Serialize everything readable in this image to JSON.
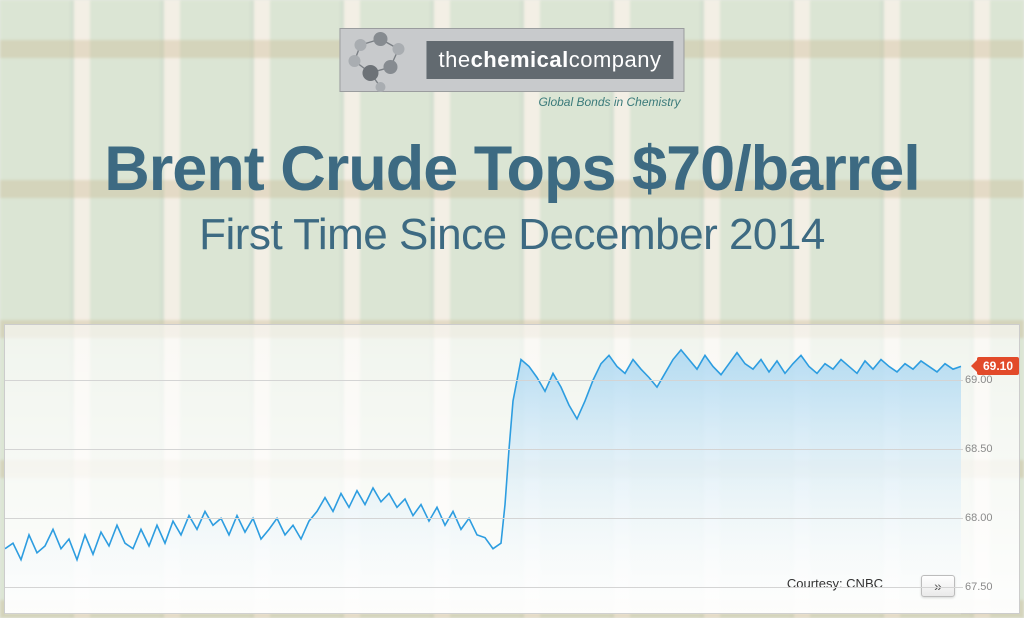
{
  "logo": {
    "prefix": "the",
    "bold": "chemical",
    "suffix": "company",
    "tagline": "Global Bonds in Chemistry",
    "bar_bg": "#c8cacc",
    "text_bg": "#626a70",
    "text_color": "#ffffff",
    "tagline_color": "#3a7a7a"
  },
  "headline": {
    "main": "Brent Crude Tops $70/barrel",
    "sub": "First Time Since December 2014",
    "color": "#3d6a82",
    "main_fontsize": 63,
    "main_weight": 800,
    "sub_fontsize": 44,
    "sub_weight": 400
  },
  "chart": {
    "type": "area-line",
    "line_color": "#2d9de0",
    "fill_top": "#a8d6f2",
    "fill_bottom": "#ffffff",
    "grid_color": "#d4d4d4",
    "axis_text_color": "#8a8a8a",
    "background": "#ffffff",
    "ylim": [
      67.3,
      69.4
    ],
    "yticks": [
      67.5,
      68.0,
      68.5,
      69.0
    ],
    "current_price": "69.10",
    "badge_color": "#e24a2a",
    "courtesy": "Courtesy: CNBC",
    "more_glyph": "»",
    "points": [
      [
        0,
        67.78
      ],
      [
        8,
        67.82
      ],
      [
        16,
        67.7
      ],
      [
        24,
        67.88
      ],
      [
        32,
        67.75
      ],
      [
        40,
        67.8
      ],
      [
        48,
        67.92
      ],
      [
        56,
        67.78
      ],
      [
        64,
        67.85
      ],
      [
        72,
        67.7
      ],
      [
        80,
        67.88
      ],
      [
        88,
        67.74
      ],
      [
        96,
        67.9
      ],
      [
        104,
        67.8
      ],
      [
        112,
        67.95
      ],
      [
        120,
        67.82
      ],
      [
        128,
        67.78
      ],
      [
        136,
        67.92
      ],
      [
        144,
        67.8
      ],
      [
        152,
        67.95
      ],
      [
        160,
        67.82
      ],
      [
        168,
        67.98
      ],
      [
        176,
        67.88
      ],
      [
        184,
        68.02
      ],
      [
        192,
        67.92
      ],
      [
        200,
        68.05
      ],
      [
        208,
        67.95
      ],
      [
        216,
        68.0
      ],
      [
        224,
        67.88
      ],
      [
        232,
        68.02
      ],
      [
        240,
        67.9
      ],
      [
        248,
        68.0
      ],
      [
        256,
        67.85
      ],
      [
        264,
        67.92
      ],
      [
        272,
        68.0
      ],
      [
        280,
        67.88
      ],
      [
        288,
        67.95
      ],
      [
        296,
        67.85
      ],
      [
        304,
        67.98
      ],
      [
        312,
        68.05
      ],
      [
        320,
        68.15
      ],
      [
        328,
        68.05
      ],
      [
        336,
        68.18
      ],
      [
        344,
        68.08
      ],
      [
        352,
        68.2
      ],
      [
        360,
        68.1
      ],
      [
        368,
        68.22
      ],
      [
        376,
        68.12
      ],
      [
        384,
        68.18
      ],
      [
        392,
        68.08
      ],
      [
        400,
        68.14
      ],
      [
        408,
        68.02
      ],
      [
        416,
        68.1
      ],
      [
        424,
        67.98
      ],
      [
        432,
        68.08
      ],
      [
        440,
        67.95
      ],
      [
        448,
        68.05
      ],
      [
        456,
        67.92
      ],
      [
        464,
        68.0
      ],
      [
        472,
        67.88
      ],
      [
        480,
        67.86
      ],
      [
        488,
        67.78
      ],
      [
        496,
        67.82
      ],
      [
        500,
        68.1
      ],
      [
        504,
        68.5
      ],
      [
        508,
        68.85
      ],
      [
        512,
        69.0
      ],
      [
        516,
        69.15
      ],
      [
        524,
        69.1
      ],
      [
        532,
        69.02
      ],
      [
        540,
        68.92
      ],
      [
        548,
        69.05
      ],
      [
        556,
        68.95
      ],
      [
        564,
        68.82
      ],
      [
        572,
        68.72
      ],
      [
        580,
        68.85
      ],
      [
        588,
        69.0
      ],
      [
        596,
        69.12
      ],
      [
        604,
        69.18
      ],
      [
        612,
        69.1
      ],
      [
        620,
        69.05
      ],
      [
        628,
        69.15
      ],
      [
        636,
        69.08
      ],
      [
        644,
        69.02
      ],
      [
        652,
        68.95
      ],
      [
        660,
        69.05
      ],
      [
        668,
        69.15
      ],
      [
        676,
        69.22
      ],
      [
        684,
        69.15
      ],
      [
        692,
        69.08
      ],
      [
        700,
        69.18
      ],
      [
        708,
        69.1
      ],
      [
        716,
        69.04
      ],
      [
        724,
        69.12
      ],
      [
        732,
        69.2
      ],
      [
        740,
        69.12
      ],
      [
        748,
        69.08
      ],
      [
        756,
        69.15
      ],
      [
        764,
        69.06
      ],
      [
        772,
        69.14
      ],
      [
        780,
        69.05
      ],
      [
        788,
        69.12
      ],
      [
        796,
        69.18
      ],
      [
        804,
        69.1
      ],
      [
        812,
        69.05
      ],
      [
        820,
        69.12
      ],
      [
        828,
        69.08
      ],
      [
        836,
        69.15
      ],
      [
        844,
        69.1
      ],
      [
        852,
        69.05
      ],
      [
        860,
        69.14
      ],
      [
        868,
        69.08
      ],
      [
        876,
        69.15
      ],
      [
        884,
        69.1
      ],
      [
        892,
        69.06
      ],
      [
        900,
        69.12
      ],
      [
        908,
        69.08
      ],
      [
        916,
        69.14
      ],
      [
        924,
        69.1
      ],
      [
        932,
        69.06
      ],
      [
        940,
        69.12
      ],
      [
        948,
        69.08
      ],
      [
        956,
        69.1
      ]
    ]
  }
}
